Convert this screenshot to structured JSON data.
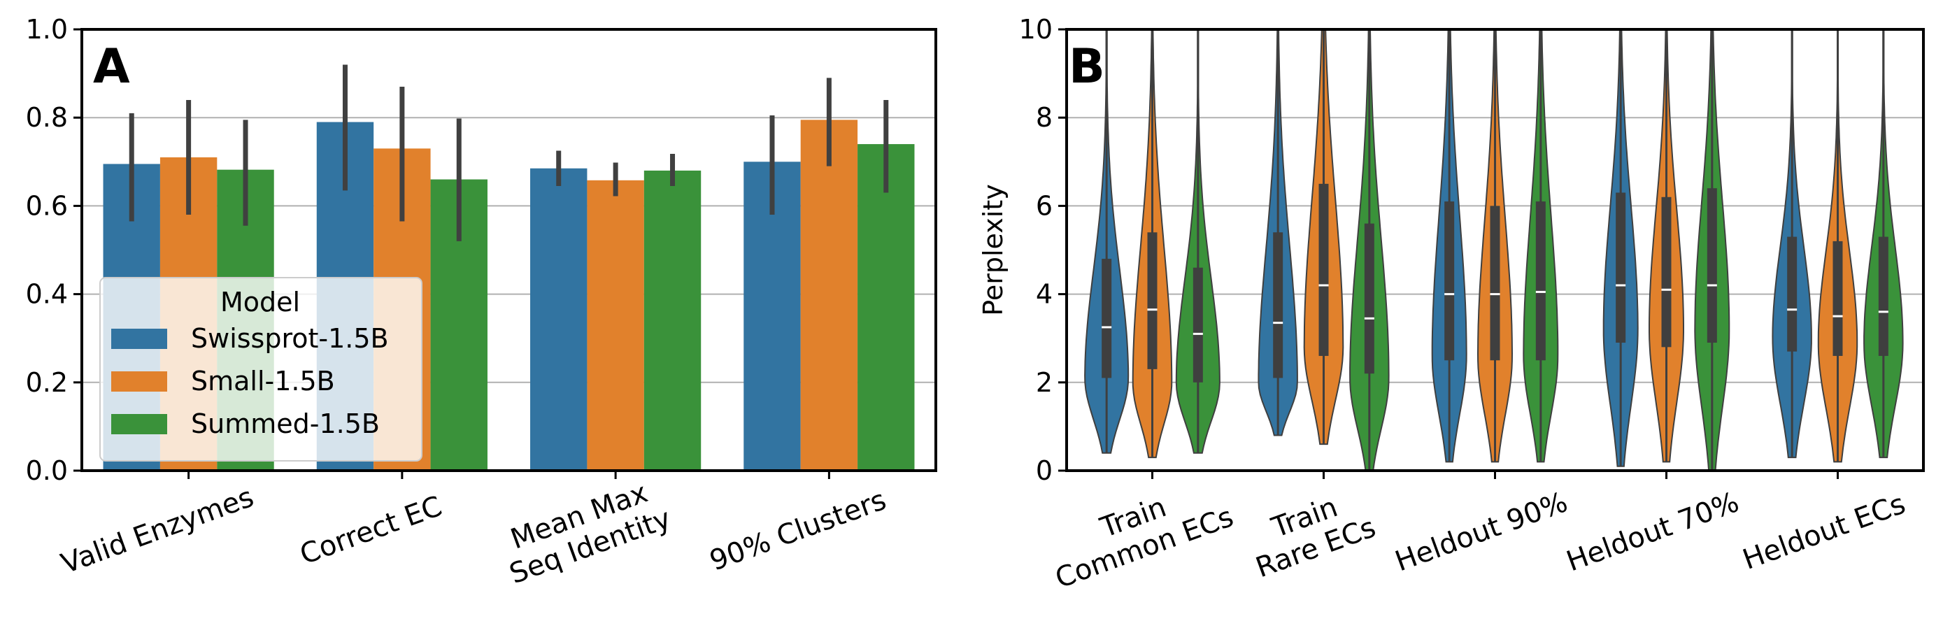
{
  "colors": {
    "blue": "#3274a1",
    "orange": "#e1812c",
    "green": "#3a923a",
    "err": "#404040",
    "grid": "#b0b0b0"
  },
  "chart_data": [
    {
      "panel_label": "A",
      "type": "bar",
      "categories": [
        [
          "Valid Enzymes"
        ],
        [
          "Correct EC"
        ],
        [
          "Mean Max",
          "Seq Identity"
        ],
        [
          "90% Clusters"
        ]
      ],
      "ylim": [
        0,
        1.0
      ],
      "yticks": [
        "0.0",
        "0.2",
        "0.4",
        "0.6",
        "0.8",
        "1.0"
      ],
      "ytick_values": [
        0,
        0.2,
        0.4,
        0.6,
        0.8,
        1.0
      ],
      "grid": true,
      "legend": {
        "title": "Model",
        "placement": "lower-left"
      },
      "series": [
        {
          "name": "Swissprot-1.5B",
          "color_key": "blue",
          "values": [
            0.695,
            0.79,
            0.685,
            0.7
          ],
          "err_low": [
            0.565,
            0.635,
            0.645,
            0.58
          ],
          "err_high": [
            0.81,
            0.92,
            0.725,
            0.805
          ]
        },
        {
          "name": "Small-1.5B",
          "color_key": "orange",
          "values": [
            0.71,
            0.73,
            0.658,
            0.795
          ],
          "err_low": [
            0.58,
            0.565,
            0.622,
            0.69
          ],
          "err_high": [
            0.84,
            0.87,
            0.698,
            0.89
          ]
        },
        {
          "name": "Summed-1.5B",
          "color_key": "green",
          "values": [
            0.682,
            0.66,
            0.68,
            0.74
          ],
          "err_low": [
            0.555,
            0.52,
            0.645,
            0.63
          ],
          "err_high": [
            0.795,
            0.798,
            0.718,
            0.84
          ]
        }
      ]
    },
    {
      "panel_label": "B",
      "type": "violin",
      "ylabel": "Perplexity",
      "categories": [
        [
          "Train",
          "Common ECs"
        ],
        [
          "Train",
          "Rare ECs"
        ],
        [
          "Heldout 90%"
        ],
        [
          "Heldout 70%"
        ],
        [
          "Heldout ECs"
        ]
      ],
      "ylim": [
        0,
        10
      ],
      "yticks": [
        "0",
        "2",
        "4",
        "6",
        "8",
        "10"
      ],
      "ytick_values": [
        0,
        2,
        4,
        6,
        8,
        10
      ],
      "grid": true,
      "series_colors": [
        "blue",
        "orange",
        "green"
      ],
      "groups": [
        [
          {
            "min": 0.4,
            "q1": 2.1,
            "median": 3.25,
            "q3": 4.8,
            "max": 10,
            "mode": 2.1,
            "width": 0.95
          },
          {
            "min": 0.3,
            "q1": 2.3,
            "median": 3.65,
            "q3": 5.4,
            "max": 10,
            "mode": 2.0,
            "width": 0.85
          },
          {
            "min": 0.4,
            "q1": 2.0,
            "median": 3.1,
            "q3": 4.6,
            "max": 10,
            "mode": 2.0,
            "width": 0.95
          }
        ],
        [
          {
            "min": 0.8,
            "q1": 2.1,
            "median": 3.35,
            "q3": 5.4,
            "max": 10,
            "mode": 2.0,
            "width": 0.85
          },
          {
            "min": 0.6,
            "q1": 2.6,
            "median": 4.2,
            "q3": 6.5,
            "max": 10,
            "mode": 2.8,
            "width": 0.85
          },
          {
            "min": 0.0,
            "q1": 2.2,
            "median": 3.45,
            "q3": 5.6,
            "max": 10,
            "mode": 2.1,
            "width": 0.85
          }
        ],
        [
          {
            "min": 0.2,
            "q1": 2.5,
            "median": 4.0,
            "q3": 6.1,
            "max": 10,
            "mode": 2.6,
            "width": 0.75
          },
          {
            "min": 0.2,
            "q1": 2.5,
            "median": 4.0,
            "q3": 6.0,
            "max": 10,
            "mode": 2.6,
            "width": 0.75
          },
          {
            "min": 0.2,
            "q1": 2.5,
            "median": 4.05,
            "q3": 6.1,
            "max": 10,
            "mode": 2.6,
            "width": 0.75
          }
        ],
        [
          {
            "min": 0.1,
            "q1": 2.9,
            "median": 4.2,
            "q3": 6.3,
            "max": 10,
            "mode": 3.2,
            "width": 0.75
          },
          {
            "min": 0.2,
            "q1": 2.8,
            "median": 4.1,
            "q3": 6.2,
            "max": 10,
            "mode": 3.2,
            "width": 0.75
          },
          {
            "min": 0.0,
            "q1": 2.9,
            "median": 4.2,
            "q3": 6.4,
            "max": 10,
            "mode": 3.2,
            "width": 0.75
          }
        ],
        [
          {
            "min": 0.3,
            "q1": 2.7,
            "median": 3.65,
            "q3": 5.3,
            "max": 10,
            "mode": 3.0,
            "width": 0.85
          },
          {
            "min": 0.2,
            "q1": 2.6,
            "median": 3.5,
            "q3": 5.2,
            "max": 10,
            "mode": 2.9,
            "width": 0.85
          },
          {
            "min": 0.3,
            "q1": 2.6,
            "median": 3.6,
            "q3": 5.3,
            "max": 10,
            "mode": 2.9,
            "width": 0.85
          }
        ]
      ]
    }
  ]
}
